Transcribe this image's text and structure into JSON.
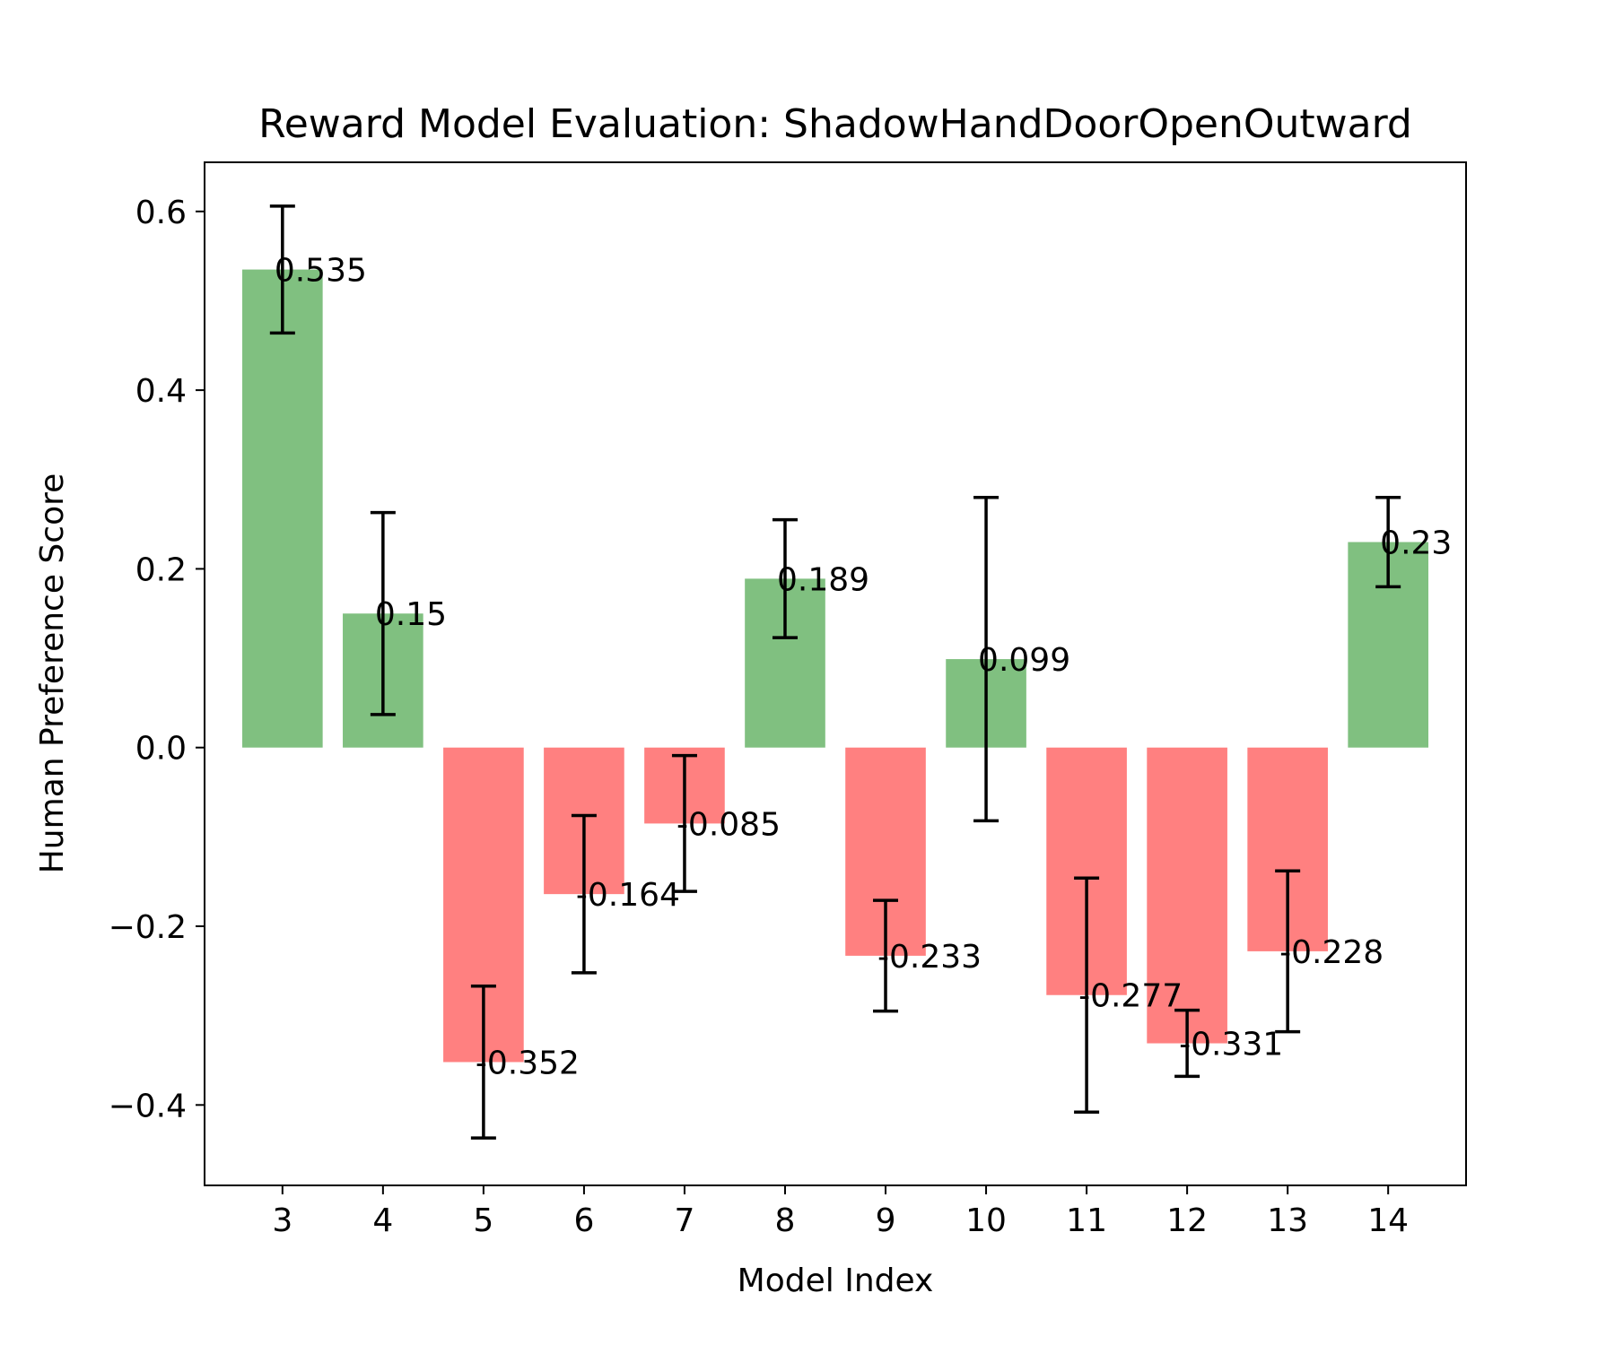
{
  "chart_data": {
    "type": "bar",
    "title": "Reward Model Evaluation: ShadowHandDoorOpenOutward",
    "xlabel": "Model Index",
    "ylabel": "Human Preference Score",
    "categories": [
      "3",
      "4",
      "5",
      "6",
      "7",
      "8",
      "9",
      "10",
      "11",
      "12",
      "13",
      "14"
    ],
    "values": [
      0.535,
      0.15,
      -0.352,
      -0.164,
      -0.085,
      0.189,
      -0.233,
      0.099,
      -0.277,
      -0.331,
      -0.228,
      0.23
    ],
    "value_labels": [
      "0.535",
      "0.15",
      "-0.352",
      "-0.164",
      "-0.085",
      "0.189",
      "-0.233",
      "0.099",
      "-0.277",
      "-0.331",
      "-0.228",
      "0.23"
    ],
    "errors": [
      0.071,
      0.113,
      0.085,
      0.088,
      0.076,
      0.066,
      0.062,
      0.181,
      0.131,
      0.037,
      0.09,
      0.05
    ],
    "ylim": [
      -0.49,
      0.655
    ],
    "yticks": [
      -0.4,
      -0.2,
      0.0,
      0.2,
      0.4,
      0.6
    ],
    "ytick_labels": [
      "−0.4",
      "−0.2",
      "0.0",
      "0.2",
      "0.4",
      "0.6"
    ],
    "colors": {
      "positive": "#80c080",
      "negative": "#ff8080",
      "error": "#000000",
      "axis": "#000000"
    },
    "grid": false,
    "legend": false
  }
}
